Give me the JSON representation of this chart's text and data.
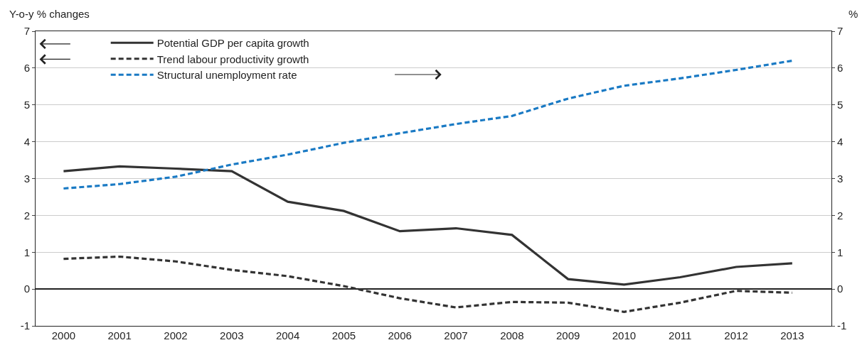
{
  "chart_data": {
    "type": "line",
    "ylabel": "Y-o-y % changes",
    "y2label": "%",
    "categories": [
      "2000",
      "2001",
      "2002",
      "2003",
      "2004",
      "2005",
      "2006",
      "2007",
      "2008",
      "2009",
      "2010",
      "2011",
      "2012",
      "2013"
    ],
    "series": [
      {
        "name": "Potential GDP per capita growth",
        "color": "#333333",
        "line_style": "solid",
        "axis": "y",
        "values": [
          3.2,
          3.33,
          3.27,
          3.2,
          2.37,
          2.12,
          1.57,
          1.65,
          1.47,
          0.27,
          0.12,
          0.32,
          0.6,
          0.7
        ]
      },
      {
        "name": "Trend labour productivity growth",
        "color": "#333333",
        "line_style": "dashed",
        "axis": "y",
        "values": [
          0.82,
          0.88,
          0.75,
          0.52,
          0.35,
          0.08,
          -0.25,
          -0.5,
          -0.35,
          -0.37,
          -0.62,
          -0.37,
          -0.05,
          -0.1
        ]
      },
      {
        "name": "Structural unemployment rate",
        "color": "#1a7ac4",
        "line_style": "dashed",
        "axis": "y2",
        "values": [
          2.73,
          2.85,
          3.05,
          3.38,
          3.65,
          3.97,
          4.23,
          4.48,
          4.7,
          5.17,
          5.52,
          5.72,
          5.95,
          6.2
        ]
      }
    ],
    "ylim": [
      -1,
      7
    ],
    "yticks": [
      -1,
      0,
      1,
      2,
      3,
      4,
      5,
      6,
      7
    ],
    "y2lim": [
      -1,
      7
    ],
    "y2ticks": [
      -1,
      0,
      1,
      2,
      3,
      4,
      5,
      6,
      7
    ],
    "grid": "y",
    "legend": "top left",
    "marker": "none"
  }
}
